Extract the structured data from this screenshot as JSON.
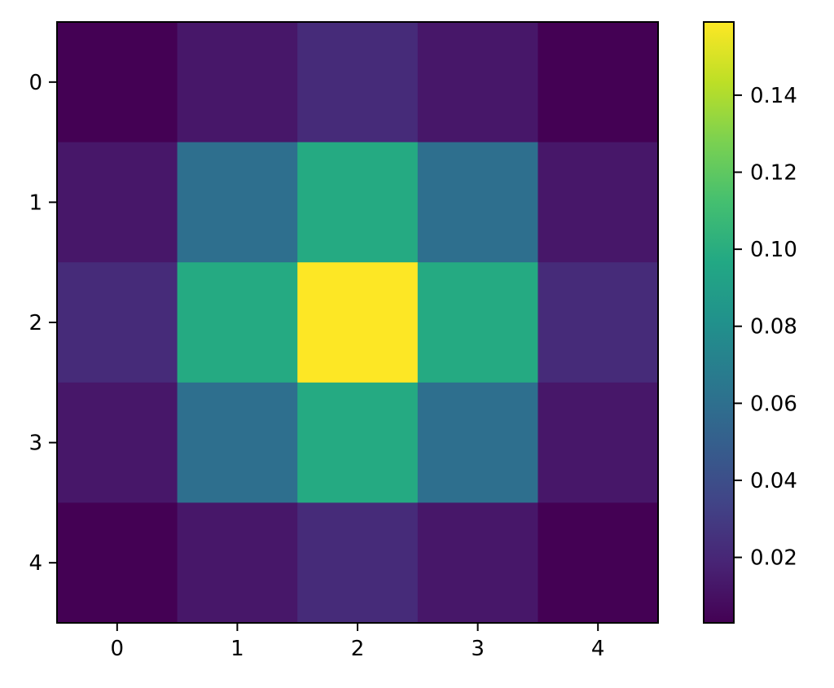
{
  "chart_data": {
    "type": "heatmap",
    "title": "",
    "xlabel": "",
    "ylabel": "",
    "x_categories": [
      "0",
      "1",
      "2",
      "3",
      "4"
    ],
    "y_categories": [
      "0",
      "1",
      "2",
      "3",
      "4"
    ],
    "values": [
      [
        0.003,
        0.013,
        0.022,
        0.013,
        0.003
      ],
      [
        0.013,
        0.06,
        0.098,
        0.06,
        0.013
      ],
      [
        0.022,
        0.098,
        0.159,
        0.098,
        0.022
      ],
      [
        0.013,
        0.06,
        0.098,
        0.06,
        0.013
      ],
      [
        0.003,
        0.013,
        0.022,
        0.013,
        0.003
      ]
    ],
    "colormap": "viridis",
    "colorbar": {
      "range": [
        0.003,
        0.159
      ],
      "ticks": [
        0.02,
        0.04,
        0.06,
        0.08,
        0.1,
        0.12,
        0.14
      ],
      "tick_labels": [
        "0.02",
        "0.04",
        "0.06",
        "0.08",
        "0.10",
        "0.12",
        "0.14"
      ]
    },
    "grid": false,
    "legend": "none"
  }
}
